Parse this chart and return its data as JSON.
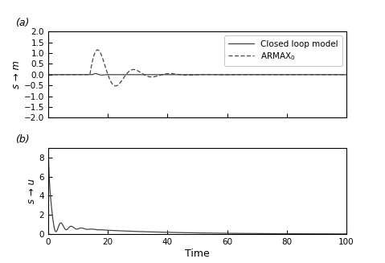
{
  "title_a": "(a)",
  "title_b": "(b)",
  "xlabel": "Time",
  "ylabel_a": "s → m",
  "ylabel_b": "s → u",
  "xlim": [
    0,
    100
  ],
  "ylim_a": [
    -2.0,
    2.0
  ],
  "ylim_b": [
    0.0,
    9.0
  ],
  "yticks_a": [
    -2.0,
    -1.5,
    -1.0,
    -0.5,
    0.0,
    0.5,
    1.0,
    1.5,
    2.0
  ],
  "yticks_b": [
    0,
    2,
    4,
    6,
    8
  ],
  "xticks": [
    0,
    20,
    40,
    60,
    80,
    100
  ],
  "legend_labels": [
    "Closed loop model",
    "ARMAX$_0$"
  ],
  "line_color": "#444444",
  "background_color": "#ffffff"
}
